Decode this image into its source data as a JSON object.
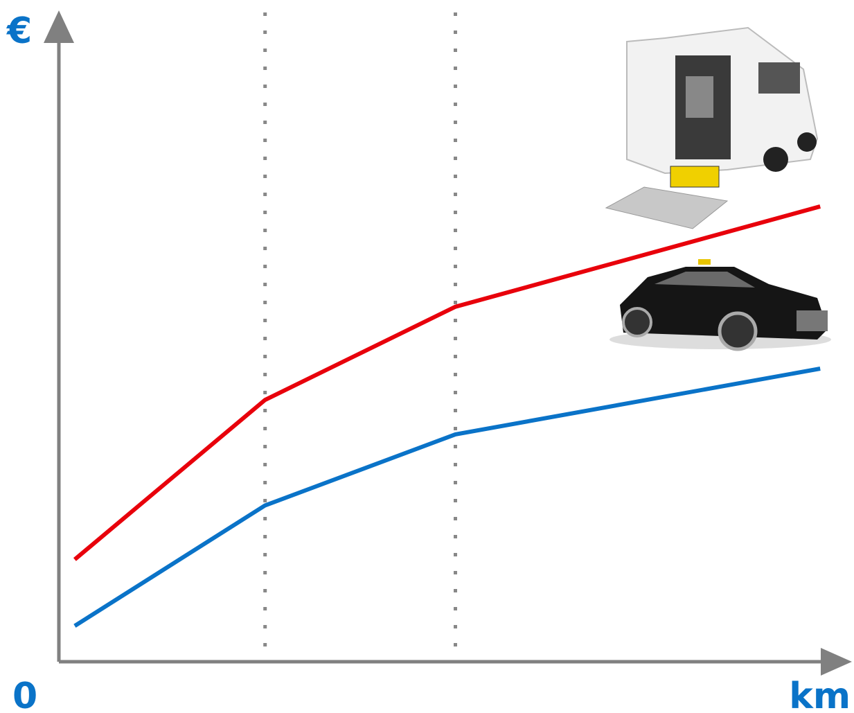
{
  "chart_data": {
    "type": "line",
    "y_label": "€",
    "x_label": "km",
    "origin_label": "0",
    "x": [
      2,
      26,
      50,
      96
    ],
    "series": [
      {
        "color": "#e8000b",
        "values": [
          15.7,
          40.2,
          54.5,
          69.9
        ]
      },
      {
        "color": "#0a73c8",
        "values": [
          5.5,
          24.0,
          34.9,
          45.0
        ]
      }
    ],
    "xlim": [
      0,
      100
    ],
    "ylim": [
      0,
      100
    ]
  }
}
